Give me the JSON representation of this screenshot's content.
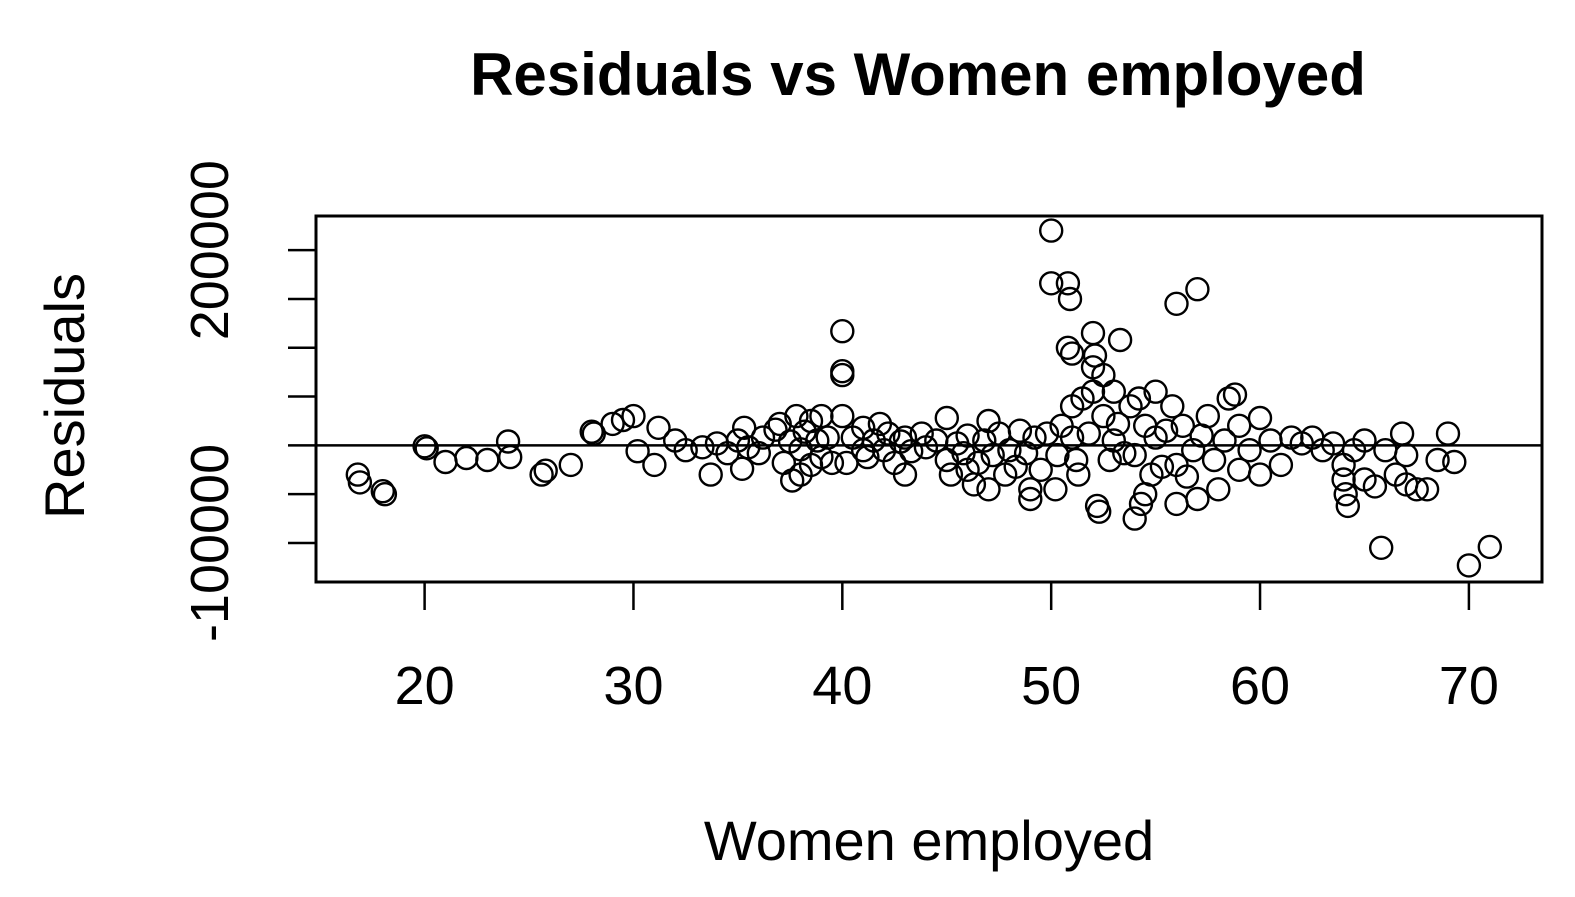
{
  "chart_data": {
    "type": "scatter",
    "title": "Residuals vs Women employed",
    "xlabel": "Women employed",
    "ylabel": "Residuals",
    "xlim": [
      14.8,
      73.5
    ],
    "ylim": [
      -140000,
      235000
    ],
    "x_ticks": [
      20,
      30,
      40,
      50,
      60,
      70
    ],
    "x_tick_labels": [
      "20",
      "30",
      "40",
      "50",
      "60",
      "70"
    ],
    "y_ticks": [
      -100000,
      -50000,
      0,
      50000,
      100000,
      150000,
      200000
    ],
    "y_tick_labels": [
      "-100000",
      "",
      "",
      "",
      "",
      "",
      "200000"
    ],
    "reference_line": {
      "y": 0
    },
    "grid": false,
    "series": [
      {
        "name": "Residuals",
        "marker": "open-circle",
        "points": [
          [
            16.8,
            -30000
          ],
          [
            16.9,
            -38000
          ],
          [
            18,
            -47000
          ],
          [
            18.1,
            -50000
          ],
          [
            20,
            -1000
          ],
          [
            20.1,
            -3000
          ],
          [
            21,
            -17000
          ],
          [
            22,
            -13000
          ],
          [
            23,
            -15000
          ],
          [
            24,
            4000
          ],
          [
            24.1,
            -12000
          ],
          [
            25.6,
            -30000
          ],
          [
            25.8,
            -26000
          ],
          [
            27,
            -20000
          ],
          [
            28,
            14000
          ],
          [
            28.1,
            12000
          ],
          [
            29,
            22000
          ],
          [
            29.5,
            26000
          ],
          [
            30,
            30000
          ],
          [
            30.2,
            -6000
          ],
          [
            31,
            -20000
          ],
          [
            31.2,
            18000
          ],
          [
            32,
            5000
          ],
          [
            32.5,
            -5000
          ],
          [
            33.3,
            -2000
          ],
          [
            33.7,
            -30000
          ],
          [
            34,
            2000
          ],
          [
            34.5,
            -8000
          ],
          [
            35,
            5000
          ],
          [
            35.2,
            -24000
          ],
          [
            35.3,
            18000
          ],
          [
            35.5,
            -2000
          ],
          [
            36,
            -8000
          ],
          [
            36.2,
            8000
          ],
          [
            36.8,
            16000
          ],
          [
            37,
            22000
          ],
          [
            37.2,
            -18000
          ],
          [
            37.5,
            4000
          ],
          [
            37.6,
            -36000
          ],
          [
            37.8,
            30000
          ],
          [
            38,
            -30000
          ],
          [
            38,
            -4000
          ],
          [
            38.2,
            14000
          ],
          [
            38.5,
            25000
          ],
          [
            38.5,
            -20000
          ],
          [
            38.8,
            5000
          ],
          [
            39,
            -12000
          ],
          [
            39,
            30000
          ],
          [
            39.3,
            8000
          ],
          [
            39.5,
            -18000
          ],
          [
            40,
            117000
          ],
          [
            40,
            76000
          ],
          [
            40,
            72000
          ],
          [
            40,
            30000
          ],
          [
            40.2,
            -18000
          ],
          [
            40.5,
            8000
          ],
          [
            41,
            -5000
          ],
          [
            41,
            18000
          ],
          [
            41.2,
            -12000
          ],
          [
            41.5,
            5000
          ],
          [
            41.8,
            22000
          ],
          [
            42,
            -5000
          ],
          [
            42.2,
            12000
          ],
          [
            42.5,
            -18000
          ],
          [
            42.8,
            4000
          ],
          [
            43,
            8000
          ],
          [
            43,
            -30000
          ],
          [
            43.3,
            -6000
          ],
          [
            43.8,
            12000
          ],
          [
            44,
            -2000
          ],
          [
            44.5,
            5000
          ],
          [
            45,
            28000
          ],
          [
            45,
            -15000
          ],
          [
            45.2,
            -30000
          ],
          [
            45.5,
            2000
          ],
          [
            45.8,
            -8000
          ],
          [
            46,
            -25000
          ],
          [
            46,
            10000
          ],
          [
            46.3,
            -40000
          ],
          [
            46.5,
            -18000
          ],
          [
            46.8,
            5000
          ],
          [
            47,
            -45000
          ],
          [
            47,
            25000
          ],
          [
            47.2,
            -10000
          ],
          [
            47.5,
            12000
          ],
          [
            47.8,
            -30000
          ],
          [
            48,
            -5000
          ],
          [
            48.3,
            -22000
          ],
          [
            48.5,
            15000
          ],
          [
            48.8,
            -8000
          ],
          [
            49,
            -55000
          ],
          [
            49,
            -45000
          ],
          [
            49.2,
            8000
          ],
          [
            49.5,
            -25000
          ],
          [
            49.8,
            12000
          ],
          [
            50,
            220000
          ],
          [
            50,
            166000
          ],
          [
            50.2,
            -45000
          ],
          [
            50.3,
            -10000
          ],
          [
            50.5,
            20000
          ],
          [
            50.8,
            166000
          ],
          [
            50.8,
            100000
          ],
          [
            50.9,
            150000
          ],
          [
            51,
            94000
          ],
          [
            51,
            40000
          ],
          [
            51,
            8000
          ],
          [
            51.2,
            -15000
          ],
          [
            51.3,
            -30000
          ],
          [
            51.5,
            48000
          ],
          [
            51.8,
            12000
          ],
          [
            52,
            115000
          ],
          [
            52,
            80000
          ],
          [
            52,
            55000
          ],
          [
            52.1,
            92000
          ],
          [
            52.2,
            -62000
          ],
          [
            52.3,
            -68000
          ],
          [
            52.5,
            72000
          ],
          [
            52.5,
            30000
          ],
          [
            52.8,
            -15000
          ],
          [
            53,
            5000
          ],
          [
            53,
            55000
          ],
          [
            53.2,
            22000
          ],
          [
            53.3,
            108000
          ],
          [
            53.5,
            -8000
          ],
          [
            53.8,
            40000
          ],
          [
            54,
            -10000
          ],
          [
            54,
            -75000
          ],
          [
            54.2,
            48000
          ],
          [
            54.3,
            -60000
          ],
          [
            54.5,
            -50000
          ],
          [
            54.5,
            20000
          ],
          [
            54.8,
            -30000
          ],
          [
            55,
            55000
          ],
          [
            55,
            8000
          ],
          [
            55.3,
            -22000
          ],
          [
            55.5,
            15000
          ],
          [
            55.8,
            40000
          ],
          [
            56,
            -20000
          ],
          [
            56,
            -60000
          ],
          [
            56,
            145000
          ],
          [
            56.3,
            20000
          ],
          [
            56.5,
            -32000
          ],
          [
            56.8,
            -5000
          ],
          [
            57,
            160000
          ],
          [
            57,
            -55000
          ],
          [
            57.2,
            10000
          ],
          [
            57.5,
            30000
          ],
          [
            57.8,
            -15000
          ],
          [
            58,
            -45000
          ],
          [
            58.3,
            5000
          ],
          [
            58.5,
            48000
          ],
          [
            58.8,
            52000
          ],
          [
            59,
            -25000
          ],
          [
            59,
            20000
          ],
          [
            59.5,
            -5000
          ],
          [
            60,
            28000
          ],
          [
            60,
            -30000
          ],
          [
            60.5,
            5000
          ],
          [
            61,
            -20000
          ],
          [
            61.5,
            8000
          ],
          [
            62,
            2000
          ],
          [
            62.5,
            8000
          ],
          [
            63,
            -5000
          ],
          [
            63.5,
            2000
          ],
          [
            64,
            -20000
          ],
          [
            64,
            -35000
          ],
          [
            64.1,
            -50000
          ],
          [
            64.2,
            -62000
          ],
          [
            64.5,
            -5000
          ],
          [
            65,
            -35000
          ],
          [
            65,
            5000
          ],
          [
            65.5,
            -42000
          ],
          [
            65.8,
            -105000
          ],
          [
            66,
            -5000
          ],
          [
            66.5,
            -30000
          ],
          [
            66.8,
            12000
          ],
          [
            67,
            -10000
          ],
          [
            67,
            -40000
          ],
          [
            67.5,
            -45000
          ],
          [
            68,
            -45000
          ],
          [
            68.5,
            -15000
          ],
          [
            69,
            12000
          ],
          [
            69.3,
            -17000
          ],
          [
            70,
            -123000
          ],
          [
            71,
            -104000
          ]
        ]
      }
    ]
  }
}
